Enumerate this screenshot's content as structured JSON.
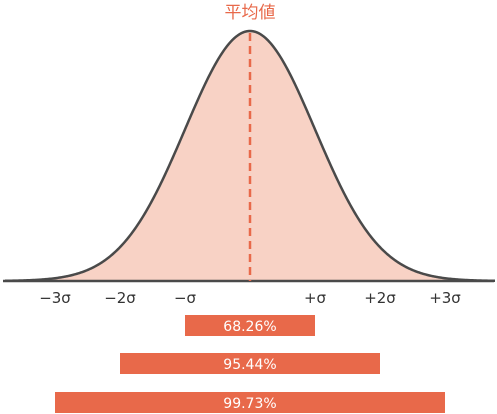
{
  "title": "平均値",
  "colors": {
    "accent": "#e8694a",
    "fill": "#f8d2c5",
    "curve": "#4a4a4a"
  },
  "chart_data": {
    "type": "area",
    "distribution": "normal",
    "x_ticks": [
      "−3σ",
      "−2σ",
      "−σ",
      "+σ",
      "+2σ",
      "+3σ"
    ],
    "mean_label": "平均値",
    "ranges": [
      {
        "from": -1,
        "to": 1,
        "label": "68.26%"
      },
      {
        "from": -2,
        "to": 2,
        "label": "95.44%"
      },
      {
        "from": -3,
        "to": 3,
        "label": "99.73%"
      }
    ]
  }
}
